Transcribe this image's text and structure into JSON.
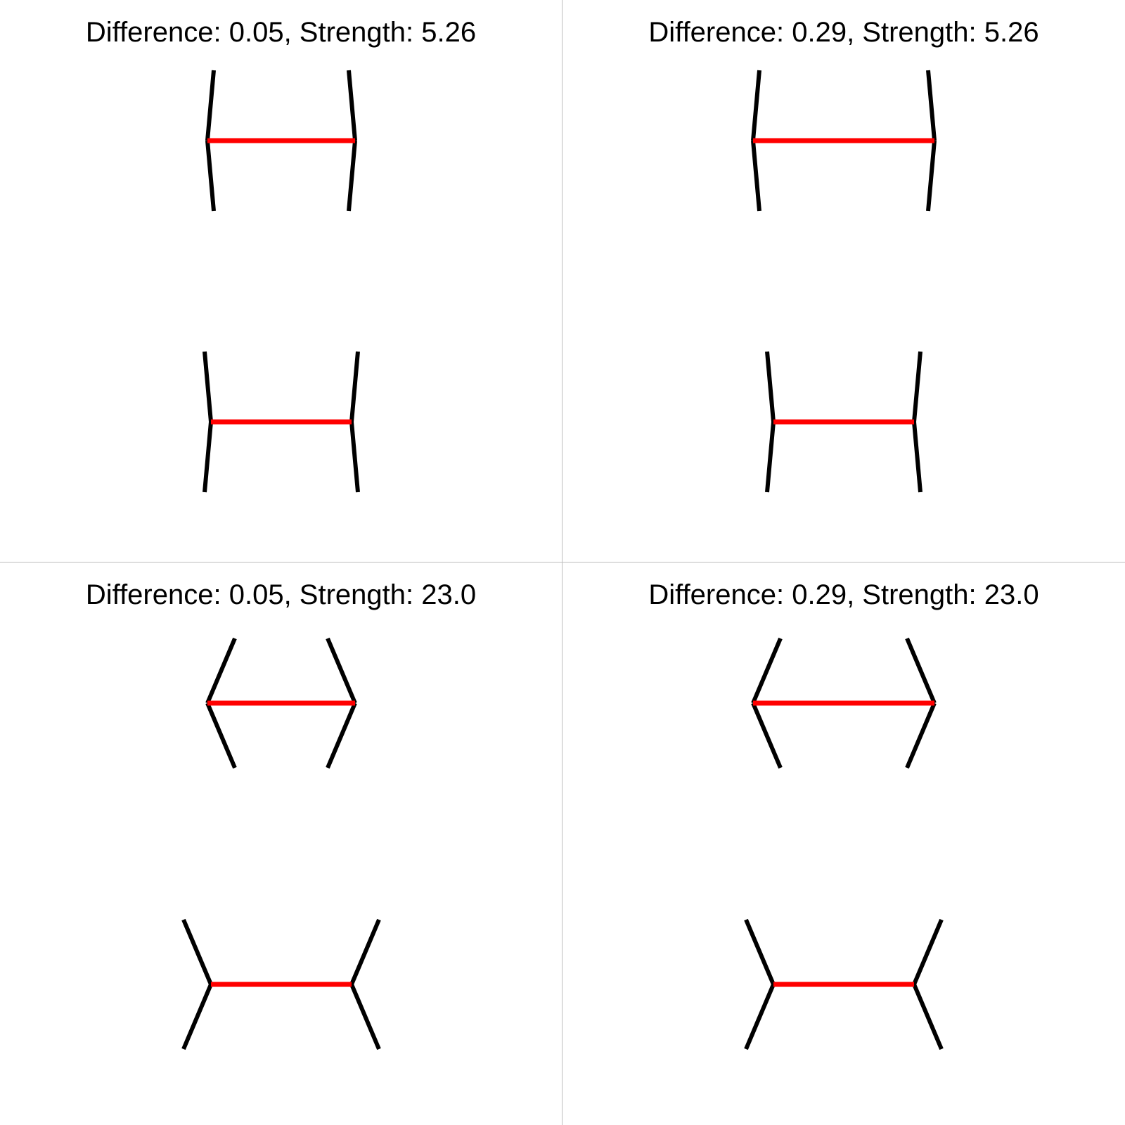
{
  "panels": [
    {
      "title": "Difference: 0.05, Strength: 5.26",
      "difference": 0.05,
      "strength": 5.26
    },
    {
      "title": "Difference: 0.29, Strength: 5.26",
      "difference": 0.29,
      "strength": 5.26
    },
    {
      "title": "Difference: 0.05, Strength: 23.0",
      "difference": 0.05,
      "strength": 23.0
    },
    {
      "title": "Difference: 0.29, Strength: 23.0",
      "difference": 0.29,
      "strength": 23.0
    }
  ],
  "colors": {
    "shaft": "#ff0000",
    "fin": "#000000",
    "divider": "#bdbdbd",
    "background": "#ffffff"
  }
}
